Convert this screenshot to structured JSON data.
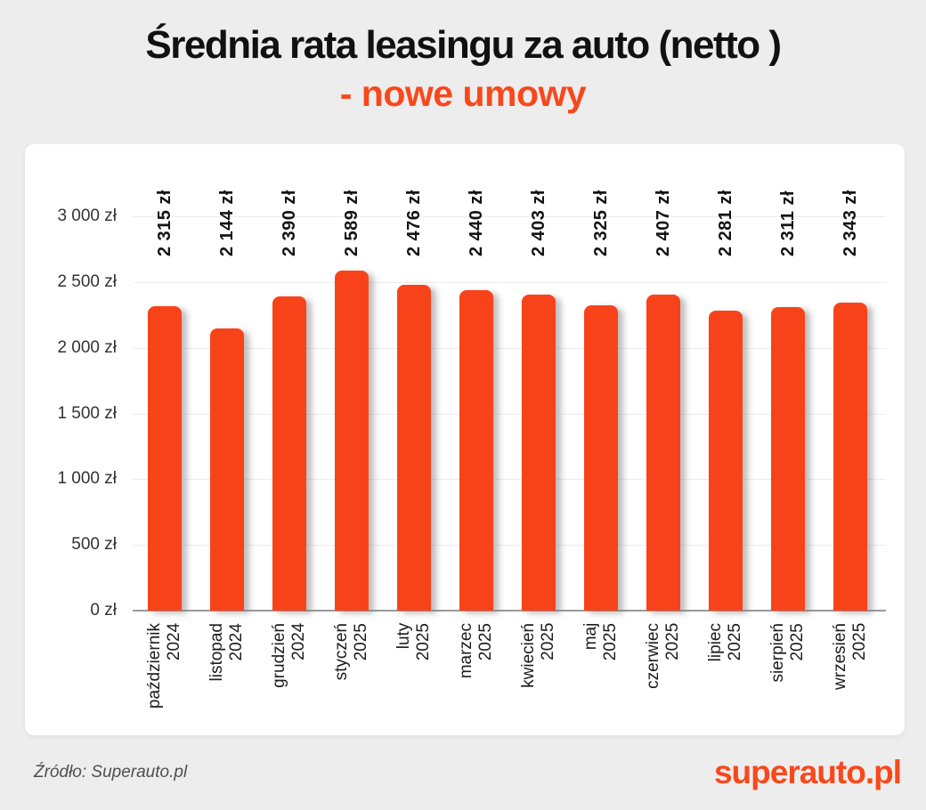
{
  "title": {
    "line1": "Średnia rata leasingu za auto (netto )",
    "line2": "- nowe umowy"
  },
  "chart_data": {
    "type": "bar",
    "categories": [
      {
        "month": "październik",
        "year": "2024"
      },
      {
        "month": "listopad",
        "year": "2024"
      },
      {
        "month": "grudzień",
        "year": "2024"
      },
      {
        "month": "styczeń",
        "year": "2025"
      },
      {
        "month": "luty",
        "year": "2025"
      },
      {
        "month": "marzec",
        "year": "2025"
      },
      {
        "month": "kwiecień",
        "year": "2025"
      },
      {
        "month": "maj",
        "year": "2025"
      },
      {
        "month": "czerwiec",
        "year": "2025"
      },
      {
        "month": "lipiec",
        "year": "2025"
      },
      {
        "month": "sierpień",
        "year": "2025"
      },
      {
        "month": "wrzesień",
        "year": "2025"
      }
    ],
    "values": [
      2315,
      2144,
      2390,
      2589,
      2476,
      2440,
      2403,
      2325,
      2407,
      2281,
      2311,
      2343
    ],
    "bar_labels": [
      "2 315 zł",
      "2 144 zł",
      "2 390 zł",
      "2 589 zł",
      "2 476 zł",
      "2 440 zł",
      "2 403 zł",
      "2 325 zł",
      "2 407 zł",
      "2 281 zł",
      "2 311 zł",
      "2 343 zł"
    ],
    "y_axis": {
      "range": [
        0,
        3000
      ],
      "ticks": [
        {
          "value": 3000,
          "label": "3 000 zł"
        },
        {
          "value": 2500,
          "label": "2 500 zł"
        },
        {
          "value": 2000,
          "label": "2 000 zł"
        },
        {
          "value": 1500,
          "label": "1 500 zł"
        },
        {
          "value": 1000,
          "label": "1 000 zł"
        },
        {
          "value": 500,
          "label": "500 zł"
        },
        {
          "value": 0,
          "label": "0 zł"
        }
      ]
    },
    "grid": true,
    "legend": false
  },
  "footer": {
    "source": "Źródło: Superauto.pl",
    "logo": "superauto.pl"
  },
  "colors": {
    "background": "#ededed",
    "card": "#ffffff",
    "bar": "#f8431a",
    "accent": "#f8481b",
    "gridline": "#ececec",
    "axis_line": "#9a9a9a",
    "title_text": "#111111",
    "tick_text": "#333333",
    "source_text": "#4f4f4f"
  }
}
